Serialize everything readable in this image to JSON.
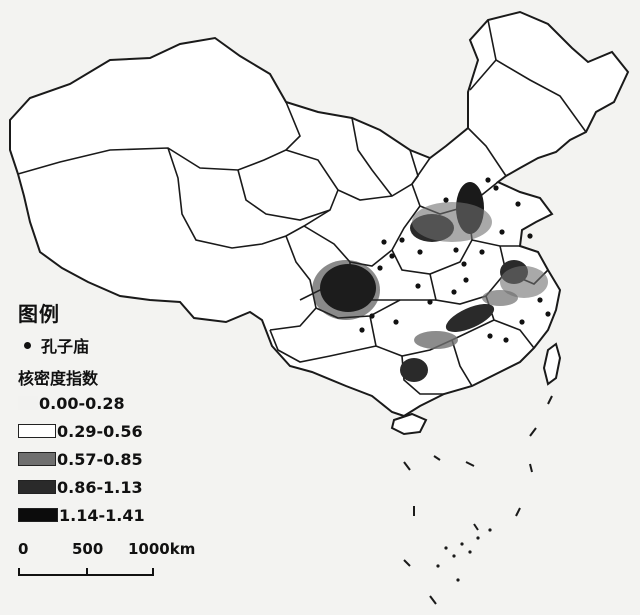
{
  "legend": {
    "title": "图例",
    "point_label": "孔子庙",
    "density_title": "核密度指数",
    "classes": [
      {
        "label": "0.00-0.28",
        "color": "#f2f2f0"
      },
      {
        "label": "0.29-0.56",
        "color": "#ffffff"
      },
      {
        "label": "0.57-0.85",
        "color": "#6f6f6f"
      },
      {
        "label": "0.86-1.13",
        "color": "#2a2a2a"
      },
      {
        "label": "1.14-1.41",
        "color": "#0c0c0c"
      }
    ]
  },
  "scale": {
    "tick_labels": [
      "0",
      "500",
      "1000km"
    ]
  },
  "colors": {
    "boundary": "#1a1a1a",
    "background": "#f3f3f1"
  }
}
